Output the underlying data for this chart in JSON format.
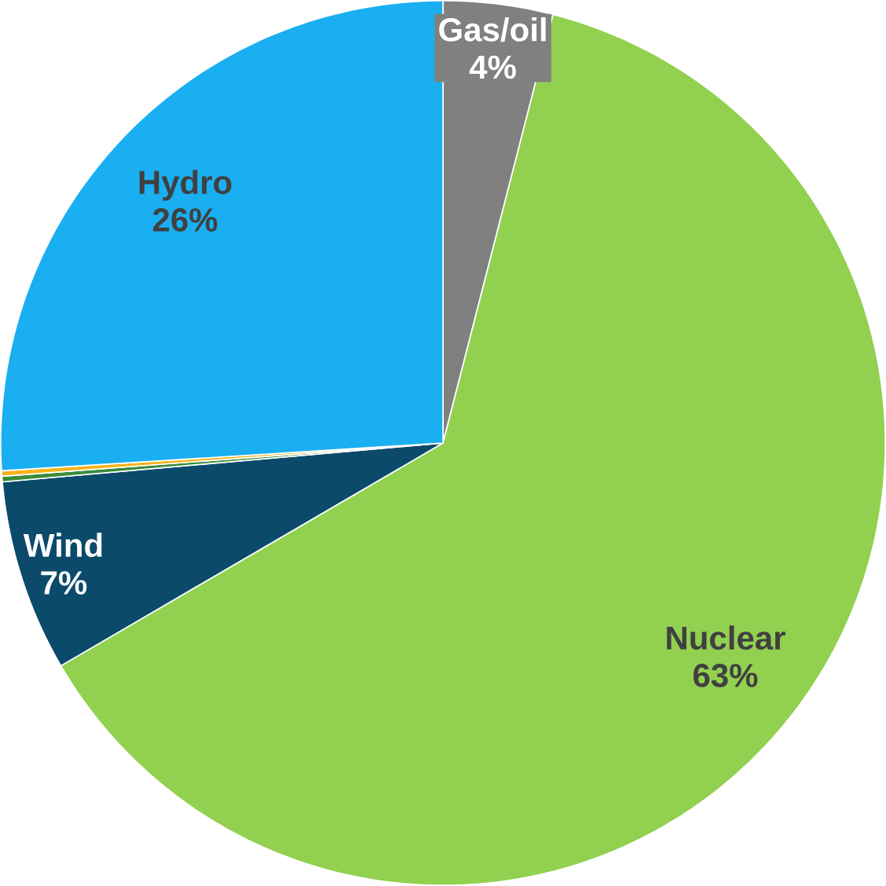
{
  "chart_data": {
    "type": "pie",
    "categories": [
      "Gas/oil",
      "Nuclear",
      "Wind",
      null,
      null,
      "Hydro"
    ],
    "values": [
      4,
      62.6,
      7,
      0.2,
      0.2,
      26
    ],
    "value_labels": [
      "4%",
      "63%",
      "7%",
      null,
      null,
      "26%"
    ],
    "colors": [
      "#808080",
      "#92d050",
      "#0b4a6b",
      "#3a8c3a",
      "#f5b31b",
      "#1aaff0"
    ]
  }
}
